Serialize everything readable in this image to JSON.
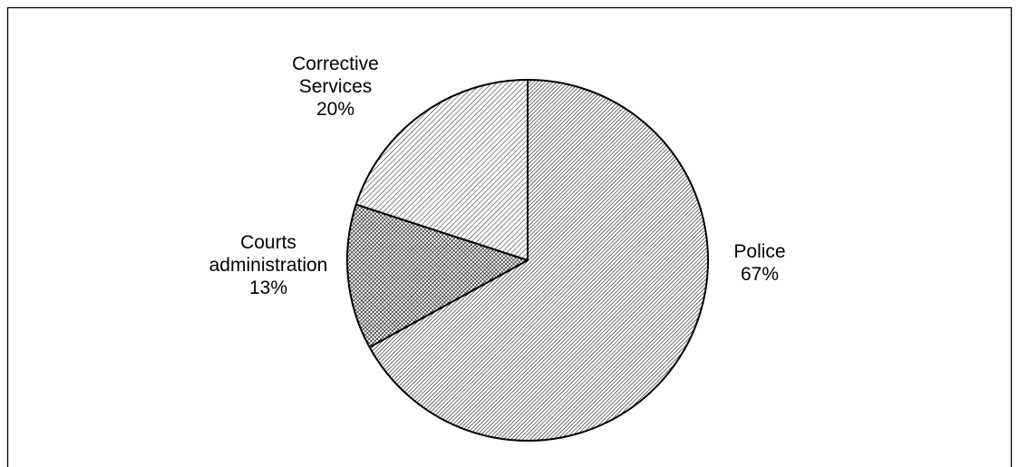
{
  "chart_data": {
    "type": "pie",
    "title": "",
    "slices": [
      {
        "name": "Police",
        "value": 67,
        "label_lines": [
          "Police",
          "67%"
        ],
        "pattern": "dense-hatch"
      },
      {
        "name": "Courts administration",
        "value": 13,
        "label_lines": [
          "Courts",
          "administration",
          "13%"
        ],
        "pattern": "dark-crosshatch"
      },
      {
        "name": "Corrective Services",
        "value": 20,
        "label_lines": [
          "Corrective",
          "Services",
          "20%"
        ],
        "pattern": "light-hatch"
      }
    ],
    "start_at": "12 o'clock",
    "direction": "clockwise",
    "legend": "none",
    "colors": {
      "outline": "#000000",
      "fill": "#ffffff",
      "hatch": "#000000"
    }
  }
}
